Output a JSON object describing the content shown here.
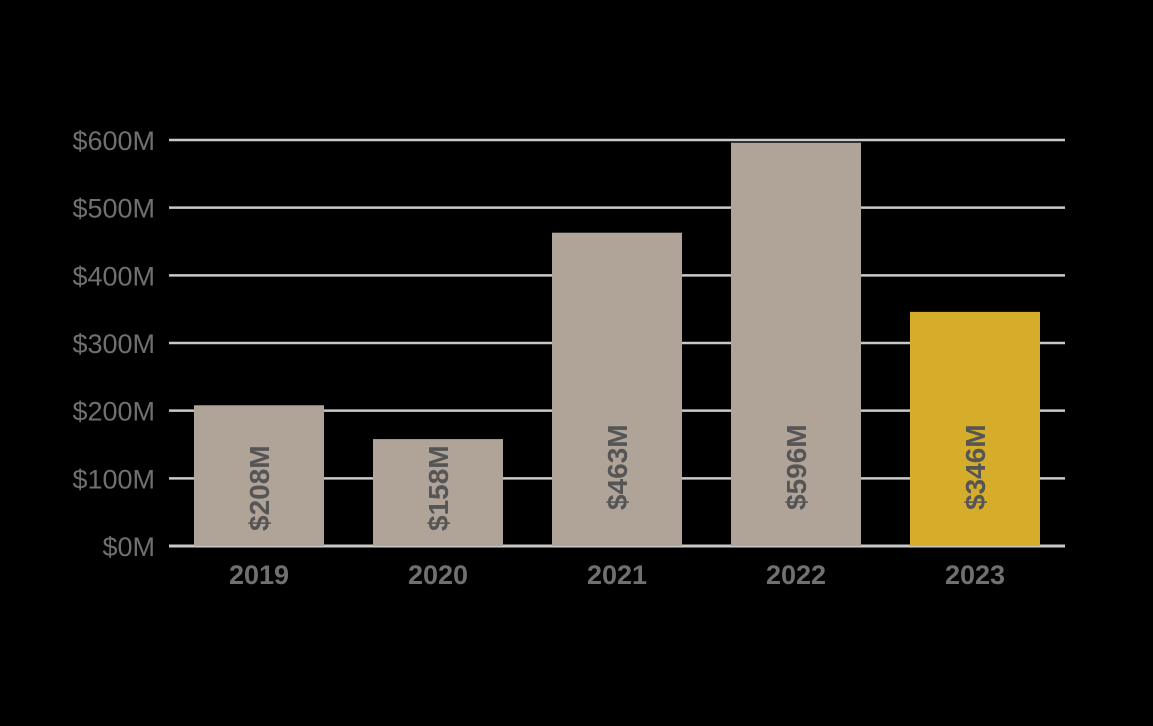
{
  "chart_data": {
    "type": "bar",
    "title": "",
    "xlabel": "",
    "ylabel": "",
    "categories": [
      "2019",
      "2020",
      "2021",
      "2022",
      "2023"
    ],
    "values": [
      208,
      158,
      463,
      596,
      346
    ],
    "data_labels": [
      "$208M",
      "$158M",
      "$463M",
      "$596M",
      "$346M"
    ],
    "ylim": [
      0,
      600
    ],
    "yticks": [
      0,
      100,
      200,
      300,
      400,
      500,
      600
    ],
    "ytick_labels": [
      "$0M",
      "$100M",
      "$200M",
      "$300M",
      "$400M",
      "$500M",
      "$600M"
    ],
    "grid": true,
    "legend": "none",
    "highlight_index": 4
  },
  "colors": {
    "background": "#000000",
    "bar": "#b0a499",
    "highlight_bar": "#d6ad2b",
    "gridline": "#c9c9c9",
    "tick_label": "#707070",
    "data_label": "#555555"
  }
}
